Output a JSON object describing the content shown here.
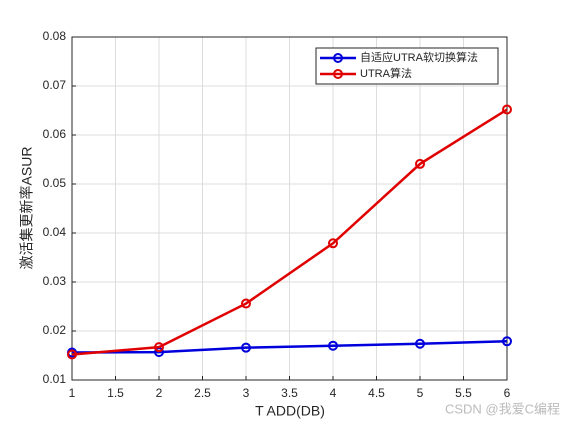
{
  "chart_data": {
    "type": "line",
    "xlabel": "T ADD(DB)",
    "ylabel": "激活集更新率ASUR",
    "x": [
      1,
      2,
      3,
      4,
      5,
      6
    ],
    "series": [
      {
        "name": "自适应UTRA软切换算法",
        "color": "#0000dd",
        "values": [
          0.0156,
          0.0157,
          0.0166,
          0.017,
          0.0174,
          0.0179
        ]
      },
      {
        "name": "UTRA算法",
        "color": "#e00000",
        "values": [
          0.0152,
          0.0167,
          0.0256,
          0.0379,
          0.0541,
          0.0652
        ]
      }
    ],
    "xlim": [
      1,
      6
    ],
    "xticks": [
      1,
      1.5,
      2,
      2.5,
      3,
      3.5,
      4,
      4.5,
      5,
      5.5,
      6
    ],
    "ylim": [
      0.01,
      0.08
    ],
    "yticks": [
      0.01,
      0.02,
      0.03,
      0.04,
      0.05,
      0.06,
      0.07,
      0.08
    ],
    "grid": true,
    "legend": "upper right",
    "watermark": "CSDN @我爱C编程"
  }
}
